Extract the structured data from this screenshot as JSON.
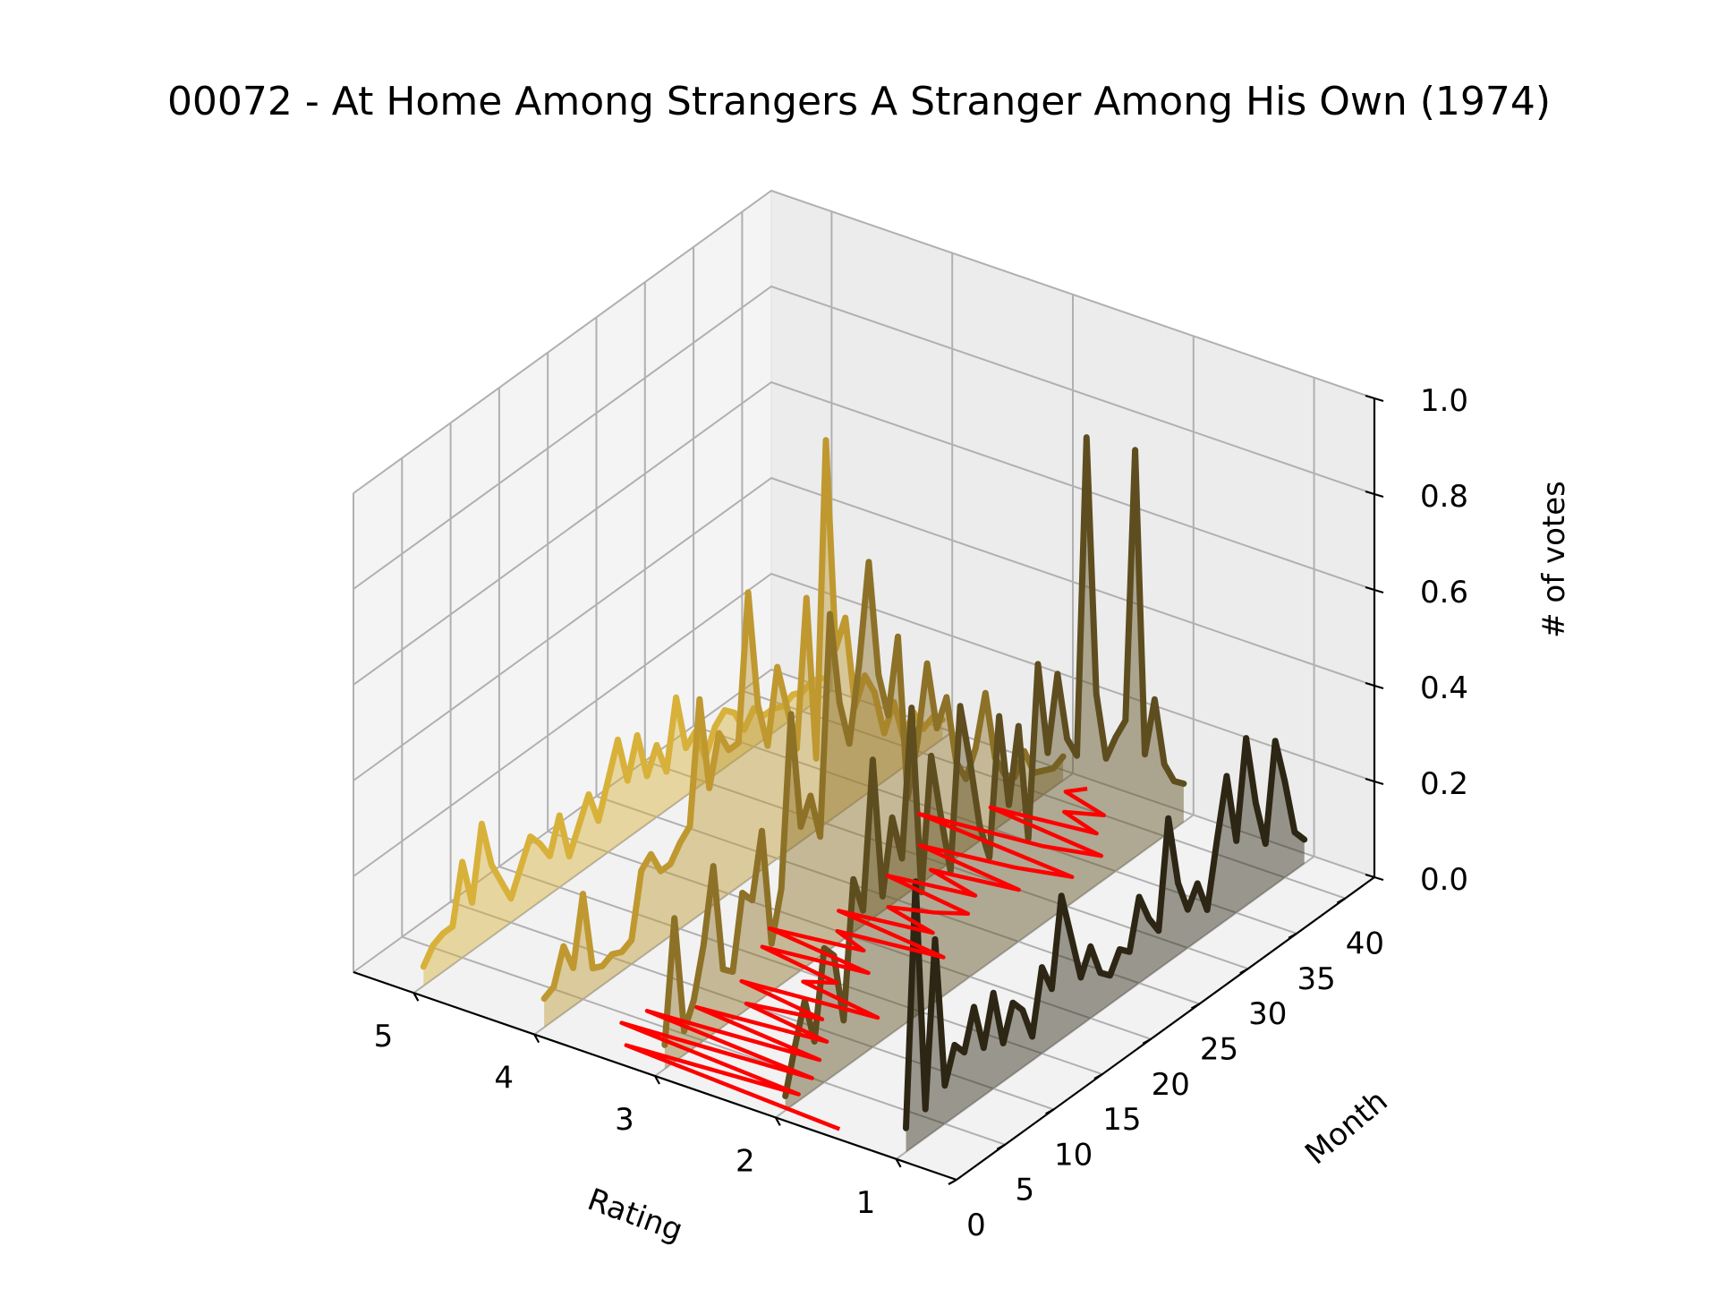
{
  "chart_data": {
    "type": "line",
    "view": "3d-ridgeline",
    "title": "00072 - At Home Among Strangers A Stranger Among His Own (1974)",
    "xlabel": "Rating",
    "ylabel": "Month",
    "zlabel": "# of votes",
    "xlim": [
      0.5,
      5.5
    ],
    "ylim": [
      0,
      43
    ],
    "zlim": [
      0,
      1.0
    ],
    "x_ticks": [
      "1",
      "2",
      "3",
      "4",
      "5"
    ],
    "y_ticks": [
      "0",
      "5",
      "10",
      "15",
      "20",
      "25",
      "30",
      "35",
      "40"
    ],
    "z_ticks": [
      "0.0",
      "0.2",
      "0.4",
      "0.6",
      "0.8",
      "1.0"
    ],
    "grid": true,
    "fill_under_series": true,
    "series": [
      {
        "rating": 5,
        "color": "#d8b13a",
        "values": [
          0.04,
          0.07,
          0.08,
          0.08,
          0.2,
          0.1,
          0.25,
          0.15,
          0.1,
          0.05,
          0.1,
          0.15,
          0.12,
          0.08,
          0.15,
          0.05,
          0.1,
          0.15,
          0.08,
          0.15,
          0.22,
          0.12,
          0.2,
          0.1,
          0.15,
          0.08,
          0.22,
          0.1,
          0.12,
          0.05,
          0.1,
          0.12,
          0.1,
          0.05,
          0.08,
          0.05,
          0.05,
          0.04,
          0.05,
          0.04,
          0.05,
          0.04
        ]
      },
      {
        "rating": 4,
        "color": "#bf9830",
        "values": [
          0.06,
          0.07,
          0.14,
          0.08,
          0.22,
          0.05,
          0.04,
          0.05,
          0.04,
          0.05,
          0.18,
          0.2,
          0.15,
          0.15,
          0.18,
          0.2,
          0.45,
          0.25,
          0.35,
          0.3,
          0.3,
          0.6,
          0.35,
          0.25,
          0.4,
          0.3,
          0.2,
          0.5,
          0.15,
          0.8,
          0.35,
          0.4,
          0.2,
          0.25,
          0.2,
          0.1,
          0.15,
          0.06,
          0.1,
          0.05,
          0.06,
          0.04
        ]
      },
      {
        "rating": 3,
        "color": "#8d7127",
        "values": [
          0.05,
          0.3,
          0.05,
          0.1,
          0.2,
          0.35,
          0.12,
          0.1,
          0.25,
          0.22,
          0.35,
          0.1,
          0.2,
          0.55,
          0.3,
          0.35,
          0.25,
          0.7,
          0.5,
          0.4,
          0.55,
          0.75,
          0.5,
          0.4,
          0.55,
          0.2,
          0.3,
          0.45,
          0.3,
          0.35,
          0.2,
          0.15,
          0.2,
          0.3,
          0.15,
          0.1,
          0.08,
          0.12,
          0.06,
          0.05,
          0.04,
          0.05
        ]
      },
      {
        "rating": 2,
        "color": "#5e4d1f",
        "values": [
          0.03,
          0.12,
          0.2,
          0.1,
          0.28,
          0.25,
          0.1,
          0.38,
          0.3,
          0.6,
          0.3,
          0.45,
          0.35,
          0.65,
          0.25,
          0.52,
          0.38,
          0.25,
          0.58,
          0.45,
          0.3,
          0.22,
          0.5,
          0.3,
          0.45,
          0.2,
          0.55,
          0.35,
          0.5,
          0.35,
          0.3,
          0.95,
          0.4,
          0.25,
          0.28,
          0.3,
          0.85,
          0.2,
          0.3,
          0.15,
          0.1,
          0.08
        ]
      },
      {
        "rating": 1,
        "color": "#2d2614",
        "values": [
          0.05,
          0.55,
          0.06,
          0.4,
          0.08,
          0.15,
          0.12,
          0.2,
          0.1,
          0.2,
          0.08,
          0.15,
          0.12,
          0.05,
          0.18,
          0.12,
          0.3,
          0.2,
          0.1,
          0.15,
          0.08,
          0.06,
          0.1,
          0.08,
          0.18,
          0.12,
          0.08,
          0.3,
          0.15,
          0.08,
          0.12,
          0.05,
          0.18,
          0.3,
          0.15,
          0.35,
          0.2,
          0.1,
          0.3,
          0.2,
          0.08,
          0.05
        ]
      }
    ],
    "mean_line": {
      "color": "#ff0000",
      "values": [
        1.55,
        3.4,
        2.05,
        3.6,
        2.1,
        3.55,
        2.2,
        3.3,
        2.3,
        3.05,
        2.5,
        3.25,
        2.2,
        2.9,
        2.7,
        3.4,
        2.6,
        3.5,
        2.8,
        3.1,
        2.3,
        3.25,
        2.55,
        3.0,
        2.7,
        2.5,
        3.25,
        2.6,
        3.05,
        2.4,
        3.3,
        2.6,
        2.2,
        3.55,
        2.6,
        2.2,
        3.2,
        2.4,
        2.75,
        2.5,
        2.9,
        2.8
      ]
    }
  }
}
